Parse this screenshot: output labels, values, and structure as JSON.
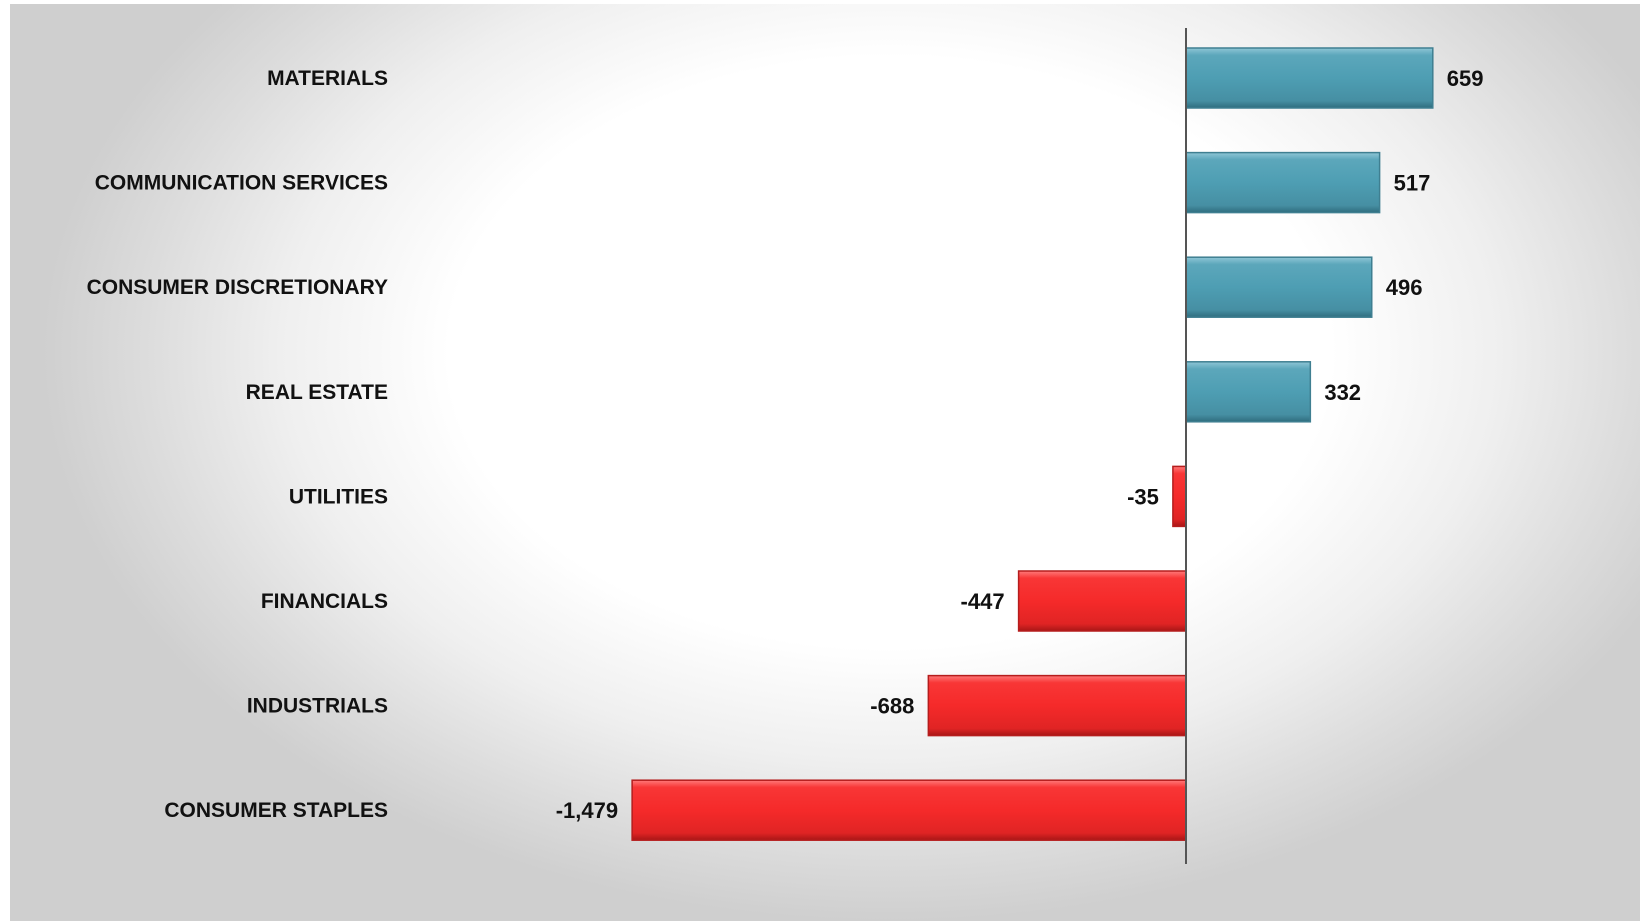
{
  "chart_data": {
    "type": "bar",
    "orientation": "horizontal",
    "title": "",
    "xlabel": "",
    "ylabel": "",
    "grid": false,
    "legend": "none",
    "categories": [
      "MATERIALS",
      "COMMUNICATION SERVICES",
      "CONSUMER DISCRETIONARY",
      "REAL ESTATE",
      "UTILITIES",
      "FINANCIALS",
      "INDUSTRIALS",
      "CONSUMER STAPLES"
    ],
    "values": [
      659,
      517,
      496,
      332,
      -35,
      -447,
      -688,
      -1479
    ],
    "value_labels": [
      "659",
      "517",
      "496",
      "332",
      "-35",
      "-447",
      "-688",
      "-1,479"
    ],
    "xlim": [
      -1479,
      659
    ],
    "colors": {
      "positive": "#4e9eb3",
      "negative": "#f52a2a",
      "axis": "#555555"
    }
  }
}
